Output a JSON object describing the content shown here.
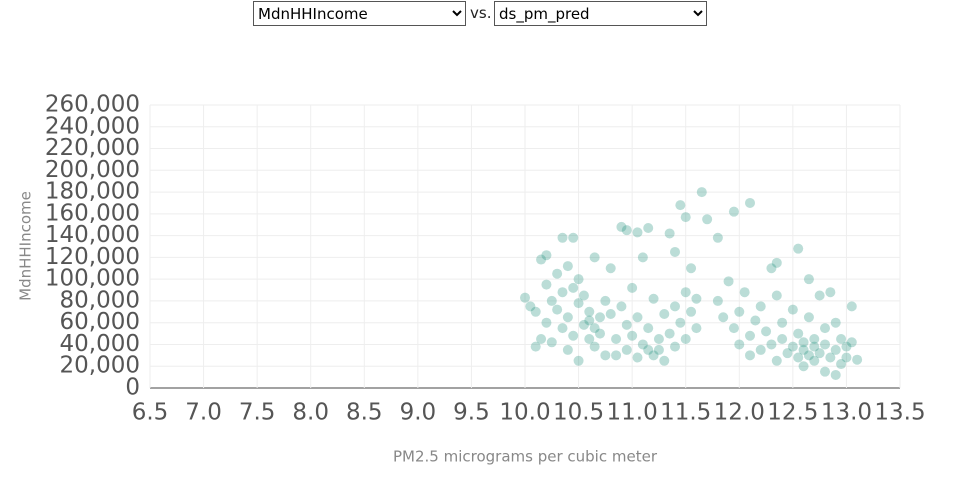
{
  "controls": {
    "y_select": "MdnHHIncome",
    "separator": "vs.",
    "x_select": "ds_pm_pred"
  },
  "chart_data": {
    "type": "scatter",
    "x_label": "PM2.5 micrograms per cubic meter",
    "y_label": "MdnHHIncome",
    "color": "#1f9079",
    "opacity": 0.3,
    "grid": true,
    "xlim": [
      6.5,
      13.5
    ],
    "xticks": [
      6.5,
      {
        "value": 7,
        "label": "7.0"
      },
      7.5,
      {
        "value": 8,
        "label": "8.0"
      },
      8.5,
      {
        "value": 9,
        "label": "9.0"
      },
      9.5,
      {
        "value": 10,
        "label": "10.0"
      },
      10.5,
      {
        "value": 11,
        "label": "11.0"
      },
      11.5,
      {
        "value": 12,
        "label": "12.0"
      },
      12.5,
      {
        "value": 13,
        "label": "13.0"
      },
      13.5
    ],
    "ylim": [
      0,
      260000
    ],
    "yticks": [
      0,
      {
        "value": 20000,
        "label": "20,000"
      },
      {
        "value": 40000,
        "label": "40,000"
      },
      {
        "value": 60000,
        "label": "60,000"
      },
      {
        "value": 80000,
        "label": "80,000"
      },
      {
        "value": 100000,
        "label": "100,000"
      },
      {
        "value": 120000,
        "label": "120,000"
      },
      {
        "value": 140000,
        "label": "140,000"
      },
      {
        "value": 160000,
        "label": "160,000"
      },
      {
        "value": 180000,
        "label": "180,000"
      },
      {
        "value": 200000,
        "label": "200,000"
      },
      {
        "value": 220000,
        "label": "220,000"
      },
      {
        "value": 240000,
        "label": "240,000"
      },
      {
        "value": 260000,
        "label": "260,000"
      }
    ],
    "x": [
      10.0,
      10.05,
      10.1,
      10.1,
      10.15,
      10.15,
      10.2,
      10.2,
      10.25,
      10.25,
      10.3,
      10.3,
      10.35,
      10.35,
      10.4,
      10.4,
      10.4,
      10.45,
      10.45,
      10.5,
      10.5,
      10.5,
      10.55,
      10.55,
      10.6,
      10.6,
      10.6,
      10.65,
      10.65,
      10.65,
      10.7,
      10.7,
      10.75,
      10.75,
      10.8,
      10.8,
      10.85,
      10.85,
      10.9,
      10.9,
      10.95,
      10.95,
      11.0,
      11.0,
      11.05,
      11.05,
      11.1,
      11.1,
      11.15,
      11.15,
      11.2,
      11.2,
      11.25,
      11.25,
      11.3,
      11.3,
      11.35,
      11.4,
      11.4,
      11.45,
      11.5,
      11.5,
      11.55,
      11.55,
      11.6,
      11.6,
      11.65,
      11.45,
      12.1,
      11.95,
      11.5,
      11.7,
      10.95,
      11.05,
      11.15,
      11.35,
      10.35,
      10.45,
      12.55,
      11.8,
      10.2,
      12.35,
      11.4,
      11.8,
      11.85,
      11.9,
      11.95,
      12.0,
      12.0,
      12.05,
      12.1,
      12.1,
      12.15,
      12.2,
      12.2,
      12.25,
      12.3,
      12.3,
      12.35,
      12.35,
      12.4,
      12.4,
      12.45,
      12.5,
      12.5,
      12.55,
      12.55,
      12.6,
      12.6,
      12.6,
      12.65,
      12.65,
      12.7,
      12.7,
      12.7,
      12.75,
      12.75,
      12.8,
      12.8,
      12.8,
      12.85,
      12.85,
      12.9,
      12.9,
      12.95,
      12.95,
      13.0,
      13.0,
      13.05,
      13.05,
      13.1,
      12.65,
      12.9
    ],
    "values": [
      83000,
      75000,
      70000,
      38000,
      118000,
      45000,
      95000,
      60000,
      80000,
      42000,
      105000,
      72000,
      88000,
      55000,
      112000,
      65000,
      35000,
      92000,
      48000,
      100000,
      78000,
      25000,
      85000,
      58000,
      70000,
      62000,
      45000,
      120000,
      55000,
      38000,
      65000,
      50000,
      80000,
      30000,
      110000,
      68000,
      45000,
      30000,
      148000,
      75000,
      58000,
      35000,
      92000,
      48000,
      28000,
      65000,
      120000,
      40000,
      35000,
      55000,
      82000,
      30000,
      45000,
      35000,
      68000,
      25000,
      50000,
      75000,
      38000,
      60000,
      88000,
      45000,
      70000,
      110000,
      82000,
      55000,
      180000,
      168000,
      170000,
      162000,
      157000,
      155000,
      145000,
      143000,
      147000,
      142000,
      138000,
      138000,
      128000,
      138000,
      122000,
      115000,
      125000,
      80000,
      65000,
      98000,
      55000,
      70000,
      40000,
      88000,
      48000,
      30000,
      62000,
      75000,
      35000,
      52000,
      110000,
      40000,
      85000,
      25000,
      60000,
      45000,
      32000,
      72000,
      38000,
      50000,
      28000,
      42000,
      35000,
      20000,
      65000,
      30000,
      38000,
      25000,
      45000,
      85000,
      32000,
      55000,
      40000,
      15000,
      88000,
      28000,
      35000,
      60000,
      45000,
      22000,
      38000,
      28000,
      75000,
      42000,
      26000,
      100000,
      12000
    ]
  }
}
